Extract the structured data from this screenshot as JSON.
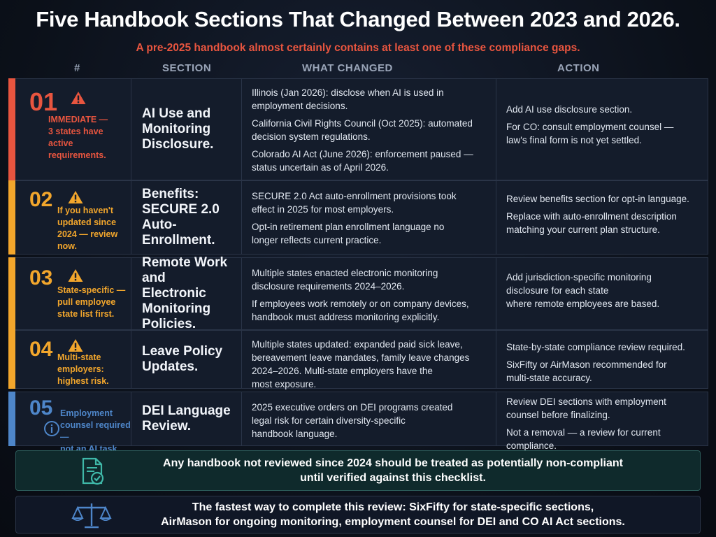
{
  "title": "Five Handbook Sections That Changed Between 2023 and 2026.",
  "subtitle": "A pre-2025 handbook almost certainly contains at least one of these compliance gaps.",
  "headers": {
    "num": "#",
    "section": "SECTION",
    "changed": "WHAT CHANGED",
    "action": "ACTION"
  },
  "colors": {
    "red": "#e8553f",
    "yellow": "#f2a62c",
    "blue": "#4e86c9"
  },
  "rows": [
    {
      "num": "01",
      "note": [
        "IMMEDIATE —",
        "3 states have",
        "active",
        "requirements."
      ],
      "icon": "warning-icon",
      "section": [
        "AI Use and",
        "Monitoring",
        "Disclosure."
      ],
      "changed": [
        [
          "Illinois (Jan 2026): disclose when AI is used in",
          "employment decisions."
        ],
        [
          "California Civil Rights Council (Oct 2025): automated",
          "decision system regulations."
        ],
        [
          "Colorado AI Act (June 2026): enforcement paused —",
          "status uncertain as of April 2026."
        ]
      ],
      "action": [
        [
          "Add AI use disclosure section."
        ],
        [
          "For CO: consult employment counsel —",
          "law's final form is not yet settled."
        ]
      ]
    },
    {
      "num": "02",
      "note": [
        "If you haven't",
        "updated since",
        "2024 — review",
        "now."
      ],
      "icon": "warning-icon",
      "section": [
        "Benefits:",
        "SECURE 2.0",
        "Auto-Enrollment."
      ],
      "changed": [
        [
          "SECURE 2.0 Act auto-enrollment provisions took",
          "effect in 2025 for most employers."
        ],
        [
          "Opt-in retirement plan enrollment language no",
          "longer reflects current practice."
        ]
      ],
      "action": [
        [
          "Review benefits section for opt-in language."
        ],
        [
          "Replace with auto-enrollment description",
          "matching your current plan structure."
        ]
      ]
    },
    {
      "num": "03",
      "note": [
        "State-specific —",
        "pull employee",
        "state list first."
      ],
      "icon": "warning-icon",
      "section": [
        "Remote Work and",
        "Electronic",
        "Monitoring",
        "Policies."
      ],
      "changed": [
        [
          "Multiple states enacted electronic monitoring",
          "disclosure requirements 2024–2026."
        ],
        [
          "If employees work remotely or on company devices,",
          "handbook must address monitoring explicitly."
        ]
      ],
      "action": [
        [
          "Add jurisdiction-specific monitoring",
          "disclosure for each state",
          "where remote employees are based."
        ]
      ]
    },
    {
      "num": "04",
      "note": [
        "Multi-state",
        "employers:",
        "highest risk."
      ],
      "icon": "warning-icon",
      "section": [
        "Leave Policy",
        "Updates."
      ],
      "changed": [
        [
          "Multiple states updated: expanded paid sick leave,",
          "bereavement leave mandates, family leave changes",
          "2024–2026. Multi-state employers have the",
          "most exposure."
        ]
      ],
      "action": [
        [
          "State-by-state compliance review required."
        ],
        [
          "SixFifty or AirMason recommended for",
          "multi-state accuracy."
        ]
      ]
    },
    {
      "num": "05",
      "note": [
        "Employment",
        "counsel required —",
        "not an AI task."
      ],
      "icon": "info-icon",
      "section": [
        "DEI Language",
        "Review."
      ],
      "changed": [
        [
          "2025 executive orders on DEI programs created",
          "legal risk for certain diversity-specific",
          "handbook language."
        ]
      ],
      "action": [
        [
          "Review DEI sections with employment",
          "counsel before finalizing."
        ],
        [
          "Not a removal — a review for current",
          "compliance."
        ]
      ]
    }
  ],
  "callout1": {
    "icon": "document-check-icon",
    "lines": [
      "Any handbook not reviewed since 2024 should be treated as potentially non-compliant",
      "until verified against this checklist."
    ]
  },
  "callout2": {
    "icon": "scales-icon",
    "lines": [
      "The fastest way to complete this review: SixFifty for state-specific sections,",
      "AirMason for ongoing monitoring, employment counsel for DEI and CO AI Act sections."
    ]
  }
}
